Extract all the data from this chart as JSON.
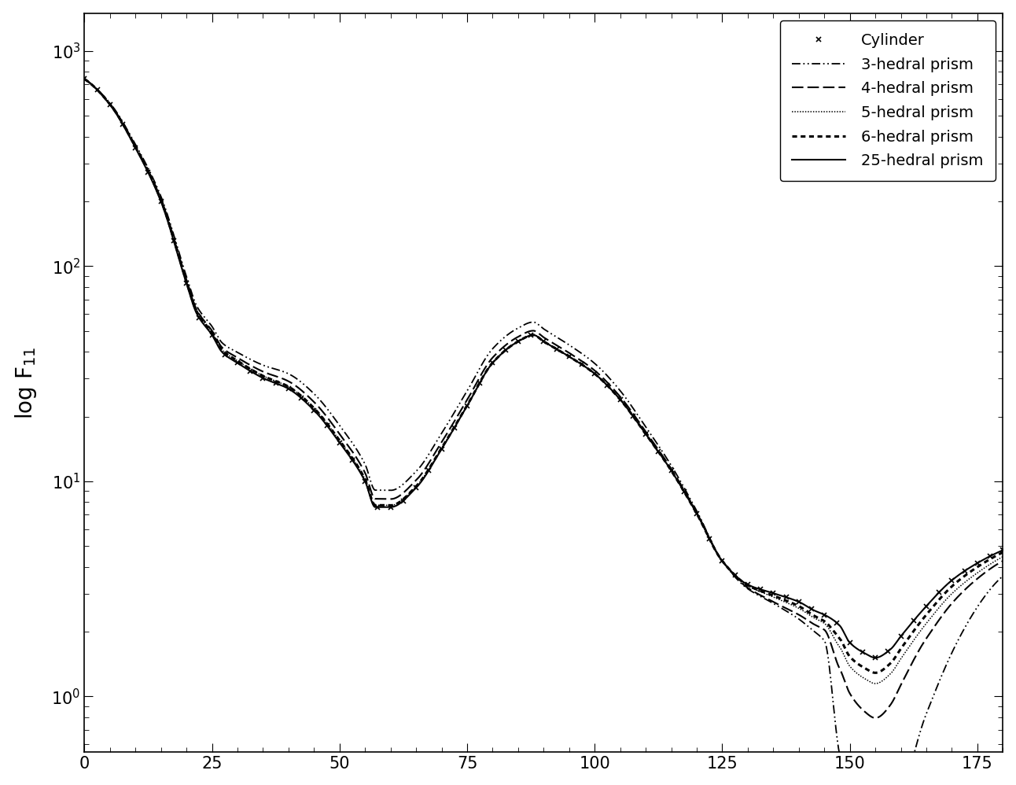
{
  "ylabel": "log F$_{11}$",
  "xlim": [
    0,
    180
  ],
  "ylim": [
    0.55,
    1500
  ],
  "xticks": [
    0,
    25,
    50,
    75,
    100,
    125,
    150,
    175
  ],
  "background": "white",
  "ylabel_fontsize": 20,
  "tick_fontsize": 15,
  "legend_fontsize": 14,
  "base_keypoints": {
    "theta": [
      0,
      5,
      10,
      15,
      20,
      22,
      25,
      27,
      30,
      35,
      40,
      45,
      50,
      55,
      57,
      60,
      65,
      70,
      75,
      80,
      85,
      88,
      90,
      95,
      100,
      105,
      110,
      115,
      120,
      125,
      130,
      135,
      140,
      143,
      145,
      148,
      150,
      153,
      155,
      158,
      160,
      165,
      170,
      175,
      180
    ],
    "logF": [
      2.87,
      2.75,
      2.55,
      2.3,
      1.92,
      1.78,
      1.68,
      1.6,
      1.55,
      1.48,
      1.43,
      1.33,
      1.18,
      1.0,
      0.88,
      0.88,
      0.97,
      1.15,
      1.35,
      1.55,
      1.65,
      1.68,
      1.65,
      1.58,
      1.5,
      1.38,
      1.22,
      1.05,
      0.85,
      0.63,
      0.52,
      0.48,
      0.44,
      0.4,
      0.38,
      0.33,
      0.25,
      0.2,
      0.18,
      0.22,
      0.28,
      0.42,
      0.54,
      0.62,
      0.68
    ]
  },
  "curve_offsets": {
    "theta_split": [
      0,
      25,
      50,
      88,
      125,
      140,
      145,
      148,
      155,
      165,
      180
    ],
    "cyl": [
      0.0,
      0.0,
      0.0,
      0.0,
      0.0,
      0.0,
      0.0,
      0.0,
      0.0,
      0.0,
      0.0
    ],
    "p25": [
      0.0,
      0.0,
      0.0,
      0.0,
      0.0,
      0.0,
      0.0,
      0.0,
      0.0,
      0.0,
      0.0
    ],
    "p3": [
      0.0,
      0.04,
      0.08,
      0.06,
      0.0,
      -0.08,
      -0.12,
      -0.6,
      -1.0,
      -0.5,
      -0.12
    ],
    "p4": [
      0.0,
      0.02,
      0.04,
      0.02,
      0.0,
      -0.06,
      -0.07,
      -0.2,
      -0.28,
      -0.15,
      -0.05
    ],
    "p5": [
      0.0,
      0.01,
      0.01,
      0.0,
      0.0,
      -0.03,
      -0.04,
      -0.1,
      -0.12,
      -0.08,
      -0.03
    ],
    "p6": [
      0.0,
      0.01,
      0.01,
      0.0,
      0.0,
      -0.02,
      -0.03,
      -0.06,
      -0.07,
      -0.04,
      -0.01
    ]
  }
}
